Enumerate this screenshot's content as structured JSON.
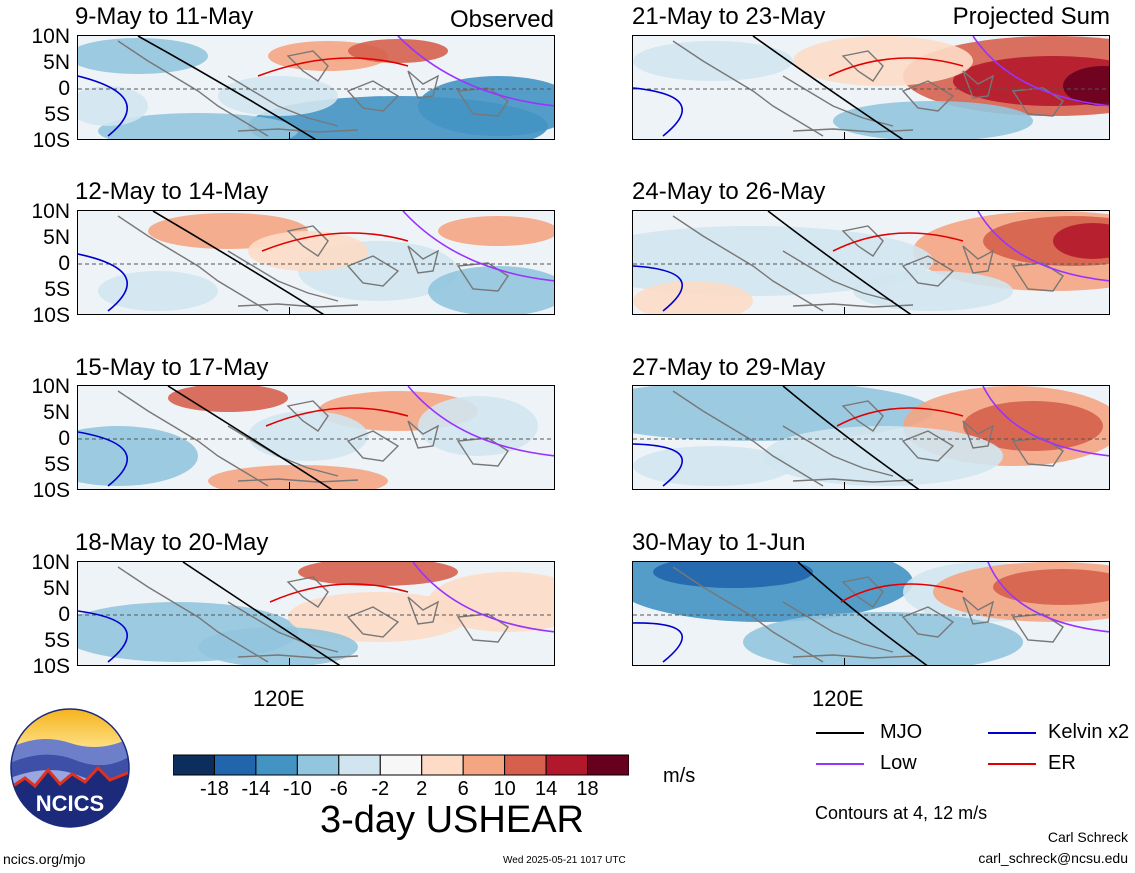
{
  "header": {
    "observed_label": "Observed",
    "projected_label": "Projected Sum"
  },
  "panels": [
    {
      "title": "9-May to 11-May"
    },
    {
      "title": "12-May to 14-May"
    },
    {
      "title": "15-May to 17-May"
    },
    {
      "title": "18-May to 20-May"
    },
    {
      "title": "21-May to 23-May"
    },
    {
      "title": "24-May to 26-May"
    },
    {
      "title": "27-May to 29-May"
    },
    {
      "title": "30-May to 1-Jun"
    }
  ],
  "lat_labels": [
    "10N",
    "5N",
    "0",
    "5S",
    "10S"
  ],
  "lon_label": "120E",
  "colorbar": {
    "labels": [
      "-18",
      "-14",
      "-10",
      "-6",
      "-2",
      "2",
      "6",
      "10",
      "14",
      "18"
    ],
    "colors": [
      "#0b2e5c",
      "#2166ac",
      "#4393c3",
      "#92c5de",
      "#d1e5f0",
      "#f7f7f7",
      "#fddbc7",
      "#f4a582",
      "#d6604d",
      "#b2182b",
      "#67001f"
    ],
    "units": "m/s",
    "title": "3-day USHEAR"
  },
  "legend": [
    {
      "label": "MJO",
      "color": "#000000"
    },
    {
      "label": "Kelvin x2",
      "color": "#0000cc"
    },
    {
      "label": "Low",
      "color": "#9933ff"
    },
    {
      "label": "ER",
      "color": "#e00000"
    }
  ],
  "contours_note": "Contours at 4, 12 m/s",
  "credits": {
    "author": "Carl Schreck",
    "email": "carl_schreck@ncsu.edu",
    "site": "ncics.org/mjo",
    "timestamp": "Wed 2025-05-21 1017 UTC",
    "logo_text": "NCICS"
  }
}
